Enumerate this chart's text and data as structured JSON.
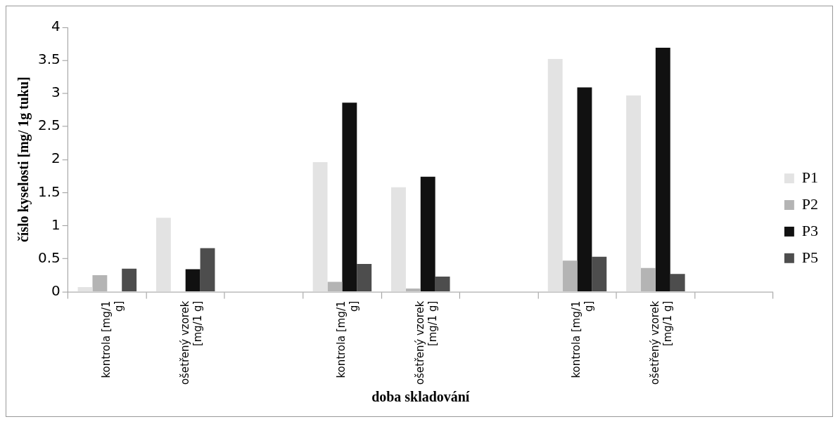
{
  "chart_data": {
    "type": "bar",
    "xlabel": "doba skladování",
    "ylabel": "číslo kyselosti [mg/ 1g tuku]",
    "categories": [
      "kontrola [mg/1 g]",
      "ošetřený vzorek [mg/1 g]",
      null,
      "kontrola [mg/1 g]",
      "ošetřený vzorek [mg/1 g]",
      null,
      "kontrola [mg/1 g]",
      "ošetřený vzorek [mg/1 g]",
      null
    ],
    "series": [
      {
        "name": "P1",
        "color": "#e3e3e3",
        "values": [
          0.07,
          1.12,
          null,
          1.96,
          1.58,
          null,
          3.52,
          2.97,
          null
        ]
      },
      {
        "name": "P2",
        "color": "#b4b4b4",
        "values": [
          0.25,
          0,
          null,
          0.15,
          0.05,
          null,
          0.47,
          0.36,
          null
        ]
      },
      {
        "name": "P3",
        "color": "#111111",
        "values": [
          0,
          0.34,
          null,
          2.86,
          1.74,
          null,
          3.09,
          3.69,
          null
        ]
      },
      {
        "name": "P5",
        "color": "#4d4d4d",
        "values": [
          0.35,
          0.66,
          null,
          0.42,
          0.23,
          null,
          0.53,
          0.27,
          null
        ]
      }
    ],
    "ylim": [
      0,
      4
    ],
    "yticks": [
      0,
      0.5,
      1,
      1.5,
      2,
      2.5,
      3,
      3.5,
      4
    ],
    "grid": false,
    "legend": "right"
  }
}
